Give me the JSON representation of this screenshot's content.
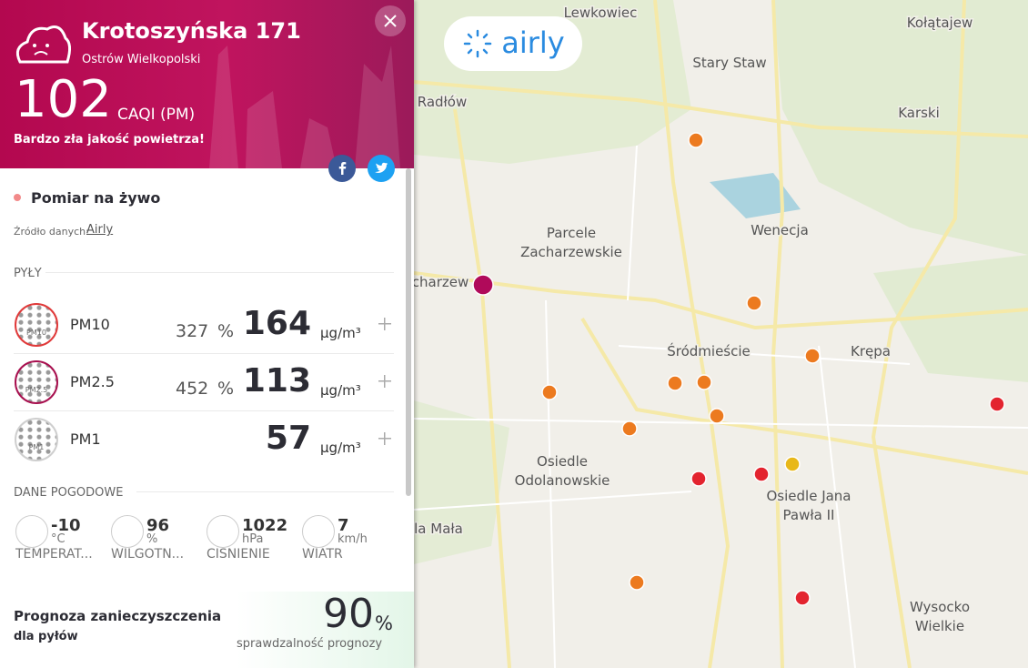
{
  "header": {
    "title": "Krotoszyńska 171",
    "subtitle": "Ostrów Wielkopolski",
    "caqi": 102,
    "caqi_unit": "CAQI (PM)",
    "quality": "Bardzo zła jakość powietrza!"
  },
  "live": {
    "label": "Pomiar na żywo",
    "source_label": "Źródło danych:",
    "source": "Airly"
  },
  "dust": {
    "title": "PYŁY",
    "items": [
      {
        "icon": "PM10",
        "name": "PM10",
        "percent": 327,
        "percent_unit": "%",
        "value": 164,
        "unit": "µg/m³"
      },
      {
        "icon": "PM2.5",
        "name": "PM2.5",
        "percent": 452,
        "percent_unit": "%",
        "value": 113,
        "unit": "µg/m³"
      },
      {
        "icon": "PM1",
        "name": "PM1",
        "value": 57,
        "unit": "µg/m³"
      }
    ]
  },
  "weather": {
    "title": "DANE POGODOWE",
    "items": [
      {
        "value": -10,
        "unit": "°C",
        "label": "TEMPERAT..."
      },
      {
        "value": 96,
        "unit": "%",
        "label": "WILGOTN..."
      },
      {
        "value": 1022,
        "unit": "hPa",
        "label": "CISNIENIE"
      },
      {
        "value": 7,
        "unit": "km/h",
        "label": "WIATR"
      }
    ]
  },
  "forecast": {
    "title": "Prognoza zanieczyszczenia",
    "subtitle": "dla pyłów",
    "value": 90,
    "unit": "%",
    "caption": "sprawdzalność prognozy"
  },
  "map": {
    "logo": "airly",
    "labels": [
      "Lewkowiec",
      "Kołątajew",
      "Stary Staw",
      "Radłów",
      "Karski",
      "Parcele",
      "Zacharzewskie",
      "Wenecja",
      "charzew",
      "Śródmieście",
      "Krępa",
      "Osiedle",
      "Odolanowskie",
      "Osiedle Jana",
      "Pawła II",
      "la Mała",
      "Wysocko",
      "Wielkie"
    ]
  }
}
